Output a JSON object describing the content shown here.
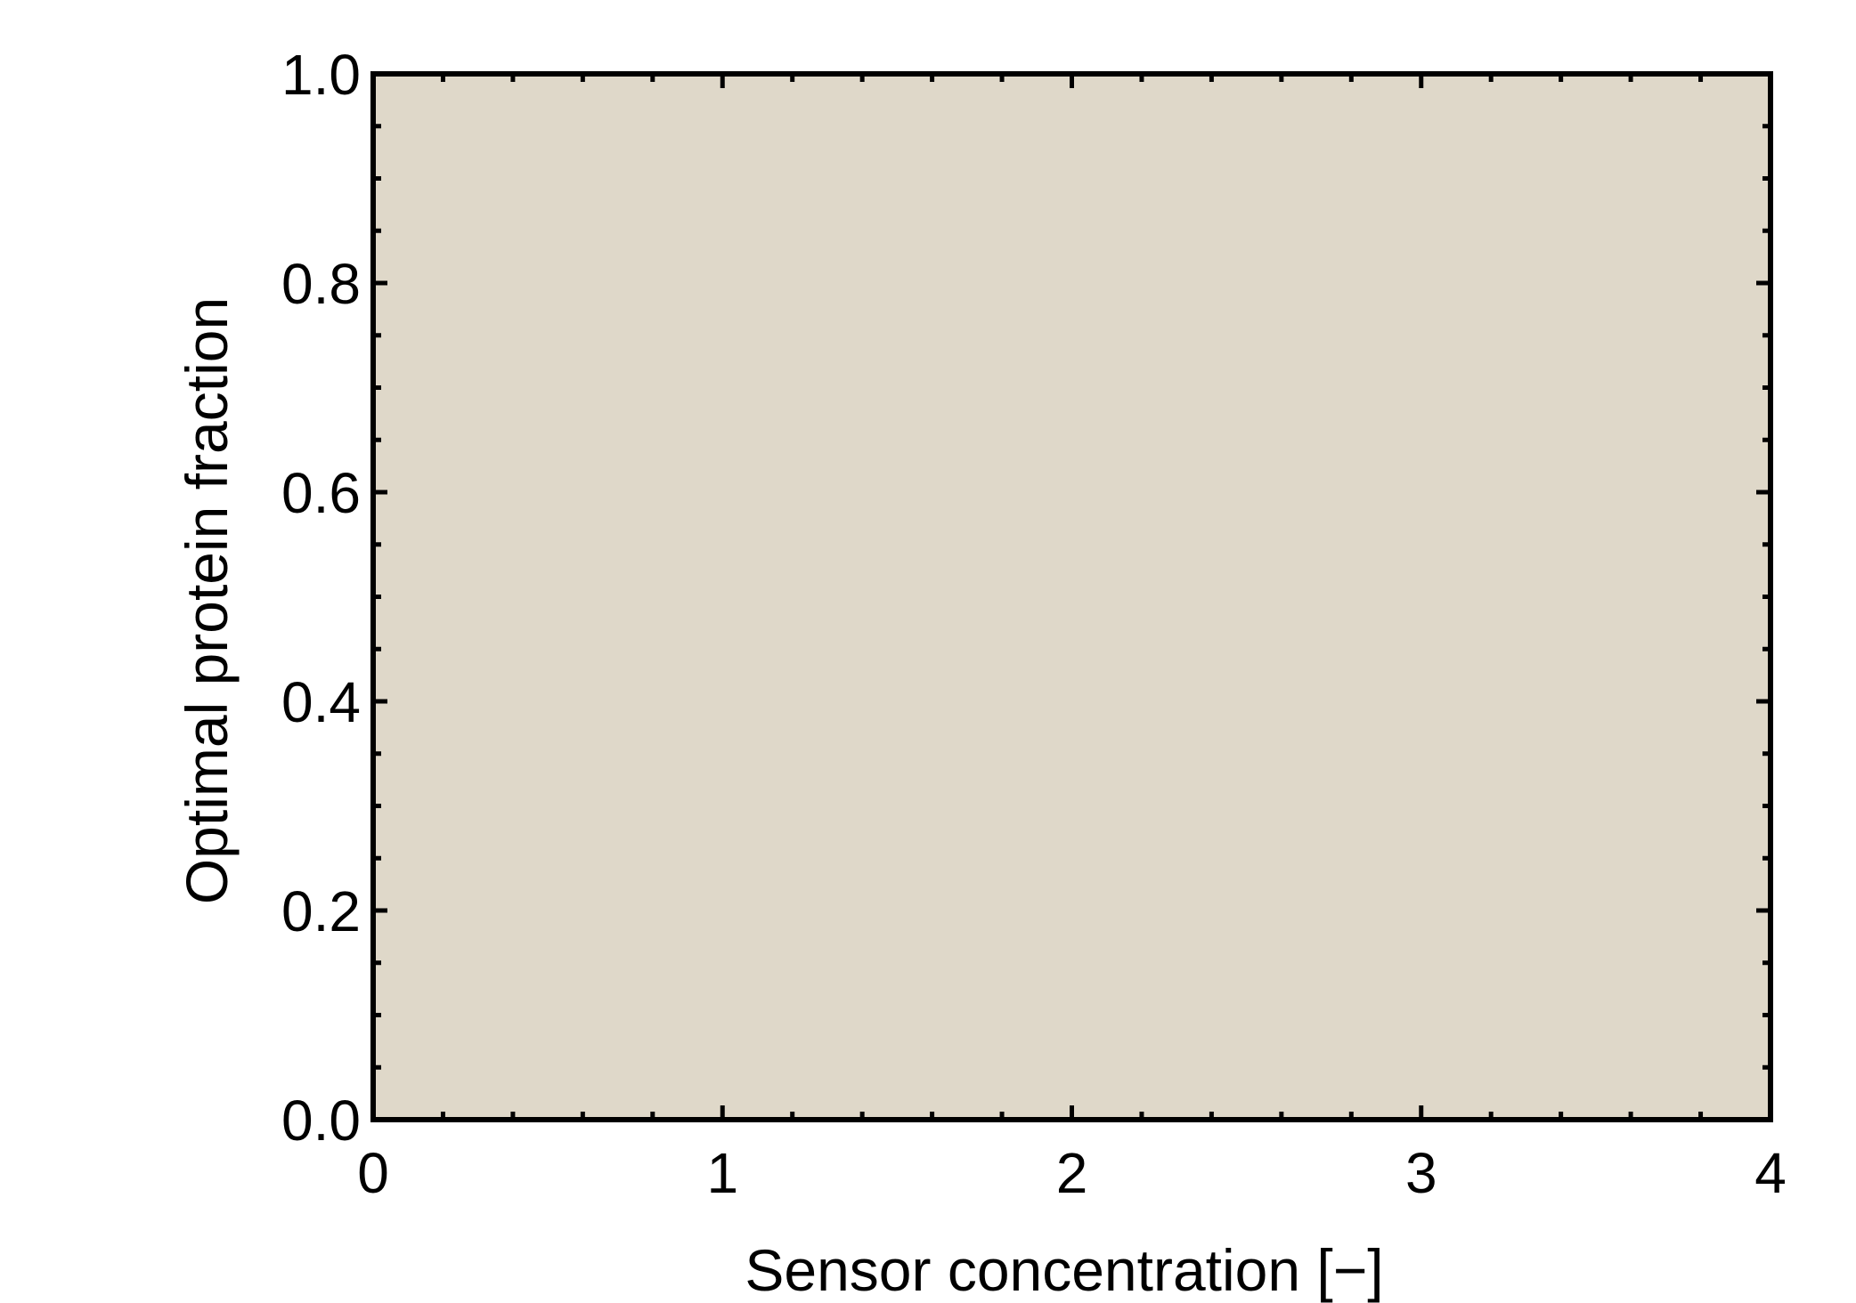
{
  "chart_data": {
    "type": "area",
    "title": "",
    "xlabel": "Sensor concentration [−]",
    "ylabel": "Optimal protein fraction",
    "xlim": [
      0,
      4
    ],
    "ylim": [
      0,
      1
    ],
    "x_ticks": [
      0,
      1,
      2,
      3,
      4
    ],
    "x_tick_labels": [
      "0",
      "1",
      "2",
      "3",
      "4"
    ],
    "y_ticks": [
      0,
      0.2,
      0.4,
      0.6,
      0.8,
      1.0
    ],
    "y_tick_labels": [
      "0.0",
      "0.2",
      "0.4",
      "0.6",
      "0.8",
      "1.0"
    ],
    "series": [
      {
        "x": [
          0,
          4
        ],
        "y": [
          1,
          1
        ],
        "baseline": 0,
        "color": "#dfd8c9"
      }
    ],
    "frame_color": "#000000",
    "grid": false,
    "legend": "none"
  }
}
